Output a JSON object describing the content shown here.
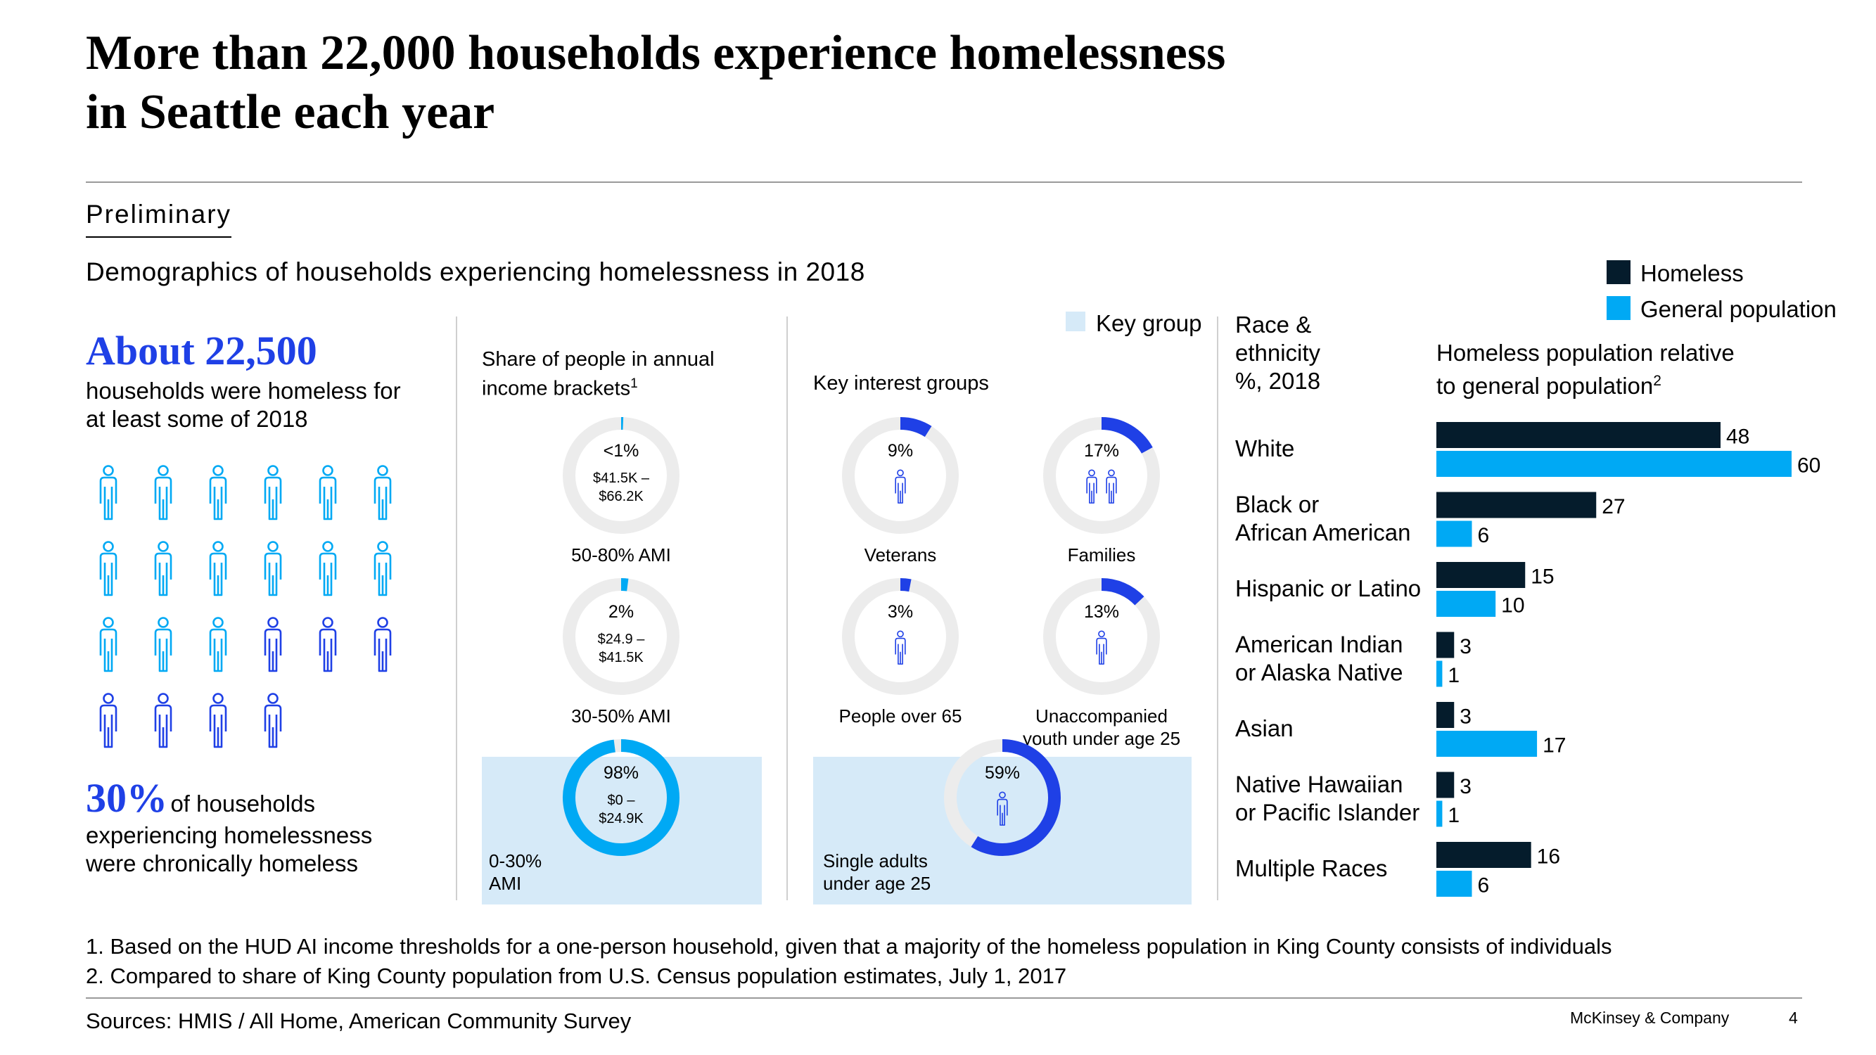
{
  "header": {
    "title_line1": "More than 22,000 households experience homelessness",
    "title_line2": "in Seattle each year",
    "tag": "Preliminary",
    "subtitle": "Demographics of households experiencing homelessness in 2018"
  },
  "left_panel": {
    "headline_number": "About 22,500",
    "headline_text_line1": "households were homeless for",
    "headline_text_line2": "at least some of 2018",
    "pictogram_total": 22,
    "pictogram_chronic": 7,
    "chronic_pct": "30%",
    "chronic_text_line1": "of households",
    "chronic_text_line2": "experiencing homelessness",
    "chronic_text_line3": "were chronically homeless"
  },
  "income_panel": {
    "title_line1": "Share of people in annual",
    "title_line2": "income brackets",
    "title_sup": "1"
  },
  "interest_panel": {
    "title": "Key interest groups",
    "legend_label": "Key group"
  },
  "chart_data": [
    {
      "type": "pie",
      "title": "Share of people in annual income brackets",
      "items": [
        {
          "label": "50-80% AMI",
          "pct_label": "<1%",
          "range_line1": "$41.5K –",
          "range_line2": "$66.2K",
          "value": 0.5,
          "key": false
        },
        {
          "label": "30-50% AMI",
          "pct_label": "2%",
          "range_line1": "$24.9 –",
          "range_line2": "$41.5K",
          "value": 2,
          "key": false
        },
        {
          "label_line1": "0-30%",
          "label_line2": "AMI",
          "pct_label": "98%",
          "range_line1": "$0 –",
          "range_line2": "$24.9K",
          "value": 98,
          "key": true
        }
      ]
    },
    {
      "type": "pie",
      "title": "Key interest groups",
      "items": [
        {
          "label": "Veterans",
          "pct_label": "9%",
          "value": 9,
          "icon": "person-icon",
          "key": false
        },
        {
          "label": "Families",
          "pct_label": "17%",
          "value": 17,
          "icon": "family-icon",
          "key": false
        },
        {
          "label": "People over 65",
          "pct_label": "3%",
          "value": 3,
          "icon": "person-icon",
          "key": false
        },
        {
          "label_line1": "Unaccompanied",
          "label_line2": "youth under age 25",
          "pct_label": "13%",
          "value": 13,
          "icon": "person-icon",
          "key": false
        },
        {
          "label_line1": "Single adults",
          "label_line2": "under age 25",
          "pct_label": "59%",
          "value": 59,
          "icon": "person-icon",
          "key": true
        }
      ]
    },
    {
      "type": "bar",
      "title_line1": "Race &",
      "title_line2": "ethnicity",
      "title_line3": "%, 2018",
      "subtitle_line1": "Homeless population relative",
      "subtitle_line2": "to general population",
      "subtitle_sup": "2",
      "legend": [
        {
          "name": "Homeless",
          "color": "#051c2c"
        },
        {
          "name": "General population",
          "color": "#00a9f4"
        }
      ],
      "categories": [
        {
          "line1": "White",
          "line2": ""
        },
        {
          "line1": "Black or",
          "line2": "African American"
        },
        {
          "line1": "Hispanic or Latino",
          "line2": ""
        },
        {
          "line1": "American Indian",
          "line2": "or Alaska Native"
        },
        {
          "line1": "Asian",
          "line2": ""
        },
        {
          "line1": "Native Hawaiian",
          "line2": "or Pacific Islander"
        },
        {
          "line1": "Multiple Races",
          "line2": ""
        }
      ],
      "series": [
        {
          "name": "Homeless",
          "values": [
            48,
            27,
            15,
            3,
            3,
            3,
            16
          ]
        },
        {
          "name": "General population",
          "values": [
            60,
            6,
            10,
            1,
            17,
            1,
            6
          ]
        }
      ],
      "xlim": [
        0,
        60
      ]
    }
  ],
  "colors": {
    "navy": "#051c2c",
    "cyan": "#00a9f4",
    "royal": "#1f40e6",
    "ring_gray": "#ececec",
    "key_bg": "#d6eaf8"
  },
  "footer": {
    "note1": "1. Based on the HUD AI income thresholds for a one-person household, given that a majority of the homeless population in King County consists of individuals",
    "note2": "2. Compared to share of King County population from U.S. Census population estimates, July 1, 2017",
    "sources": "Sources: HMIS / All Home, American Community Survey",
    "company": "McKinsey & Company",
    "page": "4"
  }
}
